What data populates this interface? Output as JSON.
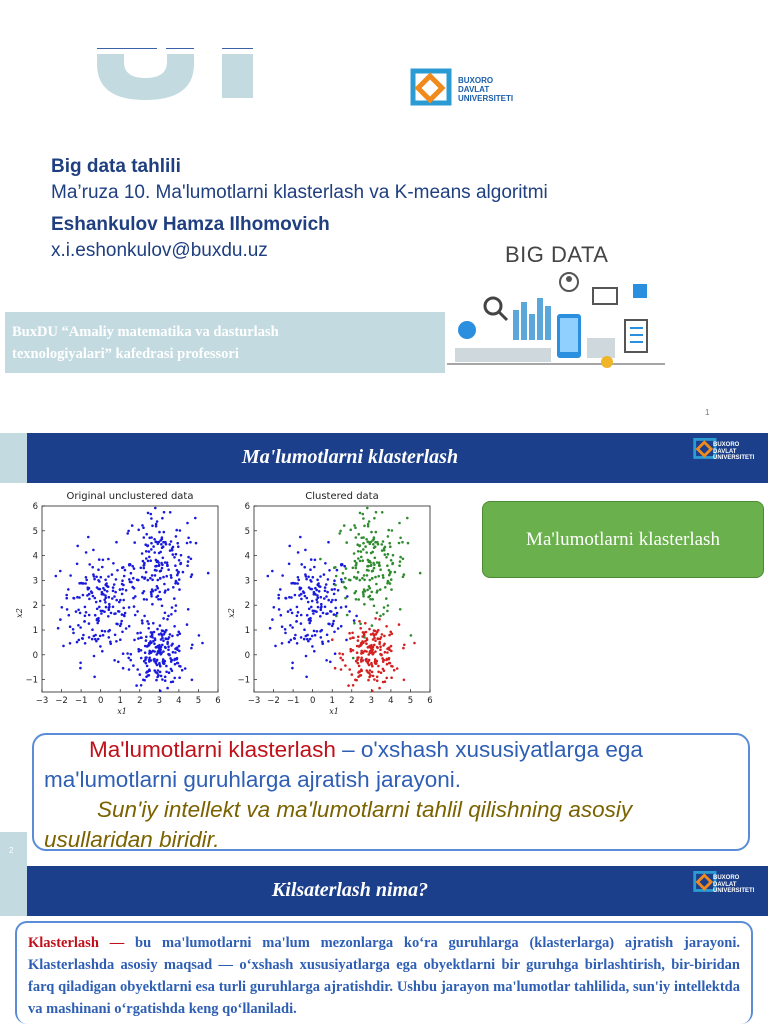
{
  "slide1": {
    "course_title": "Big data tahlili",
    "lecture_title": "Ma’ruza 10. Ma'lumotlarni klasterlash va K-means algoritmi",
    "author_name": "Eshankulov Hamza Ilhomovich",
    "author_email": "x.i.eshonkulov@buxdu.uz",
    "department_line1": "BuxDU “Amaliy matematika va dasturlash",
    "department_line2": "texnologiyalari” kafedrasi professori",
    "big_data_label": "BIG DATA",
    "page_number": "1",
    "logo": {
      "line1": "BUXORO",
      "line2": "DAVLAT",
      "line3": "UNIVERSITETI"
    }
  },
  "slide2": {
    "header_title": "Ma'lumotlarni klasterlash",
    "green_box_label": "Ma'lumotlarni klasterlash",
    "page_number": "2",
    "definition_term": "Ma'lumotlarni klasterlash",
    "definition_rest_line1": " – o'xshash xususiyatlarga ega",
    "definition_rest_line2": "ma'lumotlarni guruhlarga ajratish jarayoni.",
    "definition_line3": "Sun'iy intellekt va ma'lumotlarni tahlil qilishning asosiy",
    "definition_line4": "usullaridan biridir.",
    "logo": {
      "line1": "BUXORO",
      "line2": "DAVLAT",
      "line3": "UNIVERSITETI"
    }
  },
  "slide3": {
    "header_title": "Kilsaterlash nima?",
    "term": "Klasterlash —",
    "body": " bu ma'lumotlarni ma'lum mezonlarga ko‘ra guruhlarga (klasterlarga) ajratish jarayoni. Klasterlashda asosiy maqsad — o‘xshash xususiyatlarga ega obyektlarni bir guruhga birlashtirish, bir-biridan farq qiladigan obyektlarni esa turli guruhlarga ajratishdir. Ushbu jarayon ma'lumotlar tahlilida, sun'iy intellektda va mashinani o‘rgatishda keng qo‘llaniladi.",
    "logo": {
      "line1": "BUXORO",
      "line2": "DAVLAT",
      "line3": "UNIVERSITETI"
    }
  },
  "chart_data": [
    {
      "type": "scatter",
      "title": "Original unclustered data",
      "xlabel": "x1",
      "ylabel": "x2",
      "xlim": [
        -3,
        6
      ],
      "ylim": [
        -1.5,
        6
      ],
      "x_ticks": [
        "−3",
        "−2",
        "−1",
        "0",
        "1",
        "2",
        "3",
        "4",
        "5",
        "6"
      ],
      "y_ticks": [
        "−1",
        "0",
        "1",
        "2",
        "3",
        "4",
        "5",
        "6"
      ],
      "series": [
        {
          "color": "#1a1adc",
          "cluster_centers": [
            [
              0.0,
              2.0
            ],
            [
              3.0,
              3.5
            ],
            [
              3.0,
              0.0
            ]
          ],
          "points_per_cluster": 200
        }
      ]
    },
    {
      "type": "scatter",
      "title": "Clustered data",
      "xlabel": "x1",
      "ylabel": "x2",
      "xlim": [
        -3,
        6
      ],
      "ylim": [
        -1.5,
        6
      ],
      "x_ticks": [
        "−3",
        "−2",
        "−1",
        "0",
        "1",
        "2",
        "3",
        "4",
        "5",
        "6"
      ],
      "y_ticks": [
        "−1",
        "0",
        "1",
        "2",
        "3",
        "4",
        "5",
        "6"
      ],
      "series": [
        {
          "color": "#1a1adc",
          "center": [
            0.0,
            2.0
          ]
        },
        {
          "color": "#2e8b2e",
          "center": [
            3.0,
            3.5
          ]
        },
        {
          "color": "#d42020",
          "center": [
            3.0,
            0.0
          ]
        }
      ]
    }
  ],
  "colors": {
    "header_blue": "#1b3f8b",
    "light_teal": "#c3dbe0",
    "accent_green": "#6ab04c",
    "title_blue": "#1f3f80",
    "term_red": "#c0111a"
  }
}
